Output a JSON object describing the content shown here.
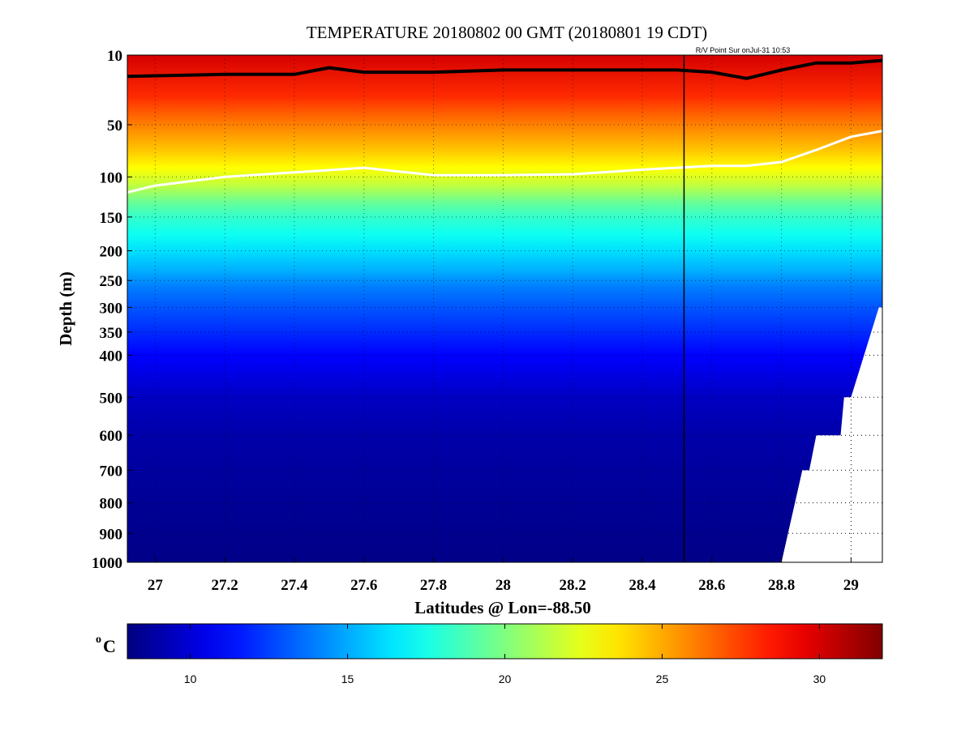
{
  "chart_data": {
    "type": "heatmap",
    "title": "TEMPERATURE 20180802 00 GMT (20180801 19 CDT)",
    "source_label": "R/V Point Sur onJul-31 10:53",
    "xlabel": "Latitudes @ Lon=-88.50",
    "ylabel": "Depth (m)",
    "xlim": [
      26.92,
      29.09
    ],
    "ylim": [
      1000,
      10
    ],
    "y_scale": "sqrt",
    "x_ticks": [
      "27",
      "27.2",
      "27.4",
      "27.6",
      "27.8",
      "28",
      "28.2",
      "28.4",
      "28.6",
      "28.8",
      "29"
    ],
    "y_ticks": [
      "10",
      "50",
      "100",
      "150",
      "200",
      "250",
      "300",
      "350",
      "400",
      "500",
      "600",
      "700",
      "800",
      "900",
      "1000"
    ],
    "grid": "dotted",
    "colorbar": {
      "label": "C",
      "label_superscript": "o",
      "range": [
        8,
        32
      ],
      "ticks": [
        "10",
        "15",
        "20",
        "25",
        "30"
      ],
      "colormap": "jet"
    },
    "temperature_profile": [
      {
        "depth": 10,
        "value": 30
      },
      {
        "depth": 30,
        "value": 28
      },
      {
        "depth": 50,
        "value": 26
      },
      {
        "depth": 70,
        "value": 24.5
      },
      {
        "depth": 90,
        "value": 23
      },
      {
        "depth": 110,
        "value": 21.5
      },
      {
        "depth": 130,
        "value": 19.5
      },
      {
        "depth": 150,
        "value": 18.2
      },
      {
        "depth": 175,
        "value": 17.3
      },
      {
        "depth": 200,
        "value": 16.3
      },
      {
        "depth": 230,
        "value": 15.2
      },
      {
        "depth": 260,
        "value": 14
      },
      {
        "depth": 300,
        "value": 13
      },
      {
        "depth": 350,
        "value": 12
      },
      {
        "depth": 400,
        "value": 11
      },
      {
        "depth": 500,
        "value": 9.6
      },
      {
        "depth": 600,
        "value": 9
      },
      {
        "depth": 800,
        "value": 8.5
      },
      {
        "depth": 1000,
        "value": 8.2
      }
    ],
    "lines": [
      {
        "color": "#000000",
        "points": [
          [
            26.92,
            19
          ],
          [
            27.2,
            18
          ],
          [
            27.4,
            18
          ],
          [
            27.5,
            15
          ],
          [
            27.6,
            17
          ],
          [
            27.8,
            17
          ],
          [
            28.0,
            16
          ],
          [
            28.2,
            16
          ],
          [
            28.4,
            16
          ],
          [
            28.5,
            16
          ],
          [
            28.6,
            17
          ],
          [
            28.7,
            20
          ],
          [
            28.8,
            16
          ],
          [
            28.9,
            13
          ],
          [
            29.0,
            13
          ],
          [
            29.09,
            12
          ]
        ]
      },
      {
        "color": "#ffffff",
        "points": [
          [
            26.92,
            118
          ],
          [
            27.0,
            110
          ],
          [
            27.2,
            100
          ],
          [
            27.4,
            95
          ],
          [
            27.6,
            90
          ],
          [
            27.8,
            98
          ],
          [
            28.0,
            98
          ],
          [
            28.2,
            97
          ],
          [
            28.4,
            92
          ],
          [
            28.6,
            88
          ],
          [
            28.7,
            88
          ],
          [
            28.8,
            84
          ],
          [
            28.9,
            72
          ],
          [
            29.0,
            60
          ],
          [
            29.09,
            55
          ]
        ]
      }
    ],
    "station_line_x": 28.52,
    "bottom_mask": [
      [
        28.8,
        1000
      ],
      [
        28.86,
        700
      ],
      [
        28.88,
        700
      ],
      [
        28.9,
        600
      ],
      [
        28.97,
        600
      ],
      [
        28.98,
        500
      ],
      [
        29.0,
        500
      ],
      [
        29.08,
        300
      ],
      [
        29.09,
        300
      ],
      [
        29.09,
        1000
      ]
    ]
  }
}
